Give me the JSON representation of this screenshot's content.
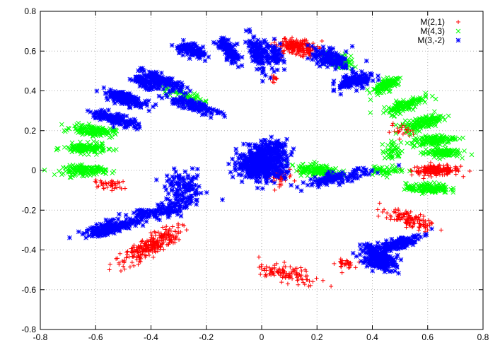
{
  "chart_data": {
    "type": "scatter",
    "title": "",
    "xlabel": "",
    "ylabel": "",
    "xlim": [
      -0.8,
      0.8
    ],
    "ylim": [
      -0.8,
      0.8
    ],
    "xticks": [
      "-0.8",
      "-0.6",
      "-0.4",
      "-0.2",
      "0",
      "0.2",
      "0.4",
      "0.6",
      "0.8"
    ],
    "yticks": [
      "-0.8",
      "-0.6",
      "-0.4",
      "-0.2",
      "0",
      "0.2",
      "0.4",
      "0.6",
      "0.8"
    ],
    "grid": true,
    "grid_style": "dotted",
    "legend_position": "top-right",
    "series": [
      {
        "name": "M(2,1)",
        "marker": "plus",
        "color": "#ff0000",
        "clusters": [
          {
            "cx": 0.13,
            "cy": 0.62,
            "rx": 0.035,
            "ry": 0.07,
            "angle": 75,
            "n": 220
          },
          {
            "cx": 0.63,
            "cy": 0.0,
            "rx": 0.08,
            "ry": 0.022,
            "angle": 0,
            "n": 180
          },
          {
            "cx": 0.54,
            "cy": -0.25,
            "rx": 0.09,
            "ry": 0.03,
            "angle": -30,
            "n": 120
          },
          {
            "cx": 0.3,
            "cy": -0.47,
            "rx": 0.03,
            "ry": 0.02,
            "angle": 0,
            "n": 30
          },
          {
            "cx": 0.09,
            "cy": -0.52,
            "rx": 0.04,
            "ry": 0.11,
            "angle": 70,
            "n": 110
          },
          {
            "cx": -0.4,
            "cy": -0.38,
            "rx": 0.12,
            "ry": 0.04,
            "angle": 40,
            "n": 260
          },
          {
            "cx": -0.55,
            "cy": -0.07,
            "rx": 0.05,
            "ry": 0.02,
            "angle": -10,
            "n": 40
          },
          {
            "cx": 0.06,
            "cy": -0.03,
            "rx": 0.05,
            "ry": 0.04,
            "angle": 0,
            "n": 50
          },
          {
            "cx": 0.51,
            "cy": 0.2,
            "rx": 0.04,
            "ry": 0.03,
            "angle": 0,
            "n": 30
          },
          {
            "cx": 0.05,
            "cy": 0.46,
            "rx": 0.02,
            "ry": 0.02,
            "angle": 0,
            "n": 12
          }
        ]
      },
      {
        "name": "M(4,3)",
        "marker": "x",
        "color": "#00ff00",
        "clusters": [
          {
            "cx": -0.64,
            "cy": 0.0,
            "rx": 0.07,
            "ry": 0.022,
            "angle": 0,
            "n": 150
          },
          {
            "cx": -0.64,
            "cy": 0.11,
            "rx": 0.07,
            "ry": 0.022,
            "angle": 0,
            "n": 150
          },
          {
            "cx": -0.61,
            "cy": 0.2,
            "rx": 0.07,
            "ry": 0.022,
            "angle": -8,
            "n": 150
          },
          {
            "cx": 0.28,
            "cy": 0.55,
            "rx": 0.025,
            "ry": 0.055,
            "angle": 70,
            "n": 120
          },
          {
            "cx": 0.45,
            "cy": 0.43,
            "rx": 0.05,
            "ry": 0.025,
            "angle": 40,
            "n": 120
          },
          {
            "cx": 0.52,
            "cy": 0.33,
            "rx": 0.07,
            "ry": 0.025,
            "angle": 30,
            "n": 140
          },
          {
            "cx": 0.58,
            "cy": 0.24,
            "rx": 0.07,
            "ry": 0.025,
            "angle": 20,
            "n": 140
          },
          {
            "cx": 0.62,
            "cy": 0.15,
            "rx": 0.07,
            "ry": 0.022,
            "angle": 10,
            "n": 140
          },
          {
            "cx": 0.65,
            "cy": 0.09,
            "rx": 0.06,
            "ry": 0.02,
            "angle": 0,
            "n": 120
          },
          {
            "cx": 0.6,
            "cy": -0.09,
            "rx": 0.07,
            "ry": 0.022,
            "angle": 0,
            "n": 140
          },
          {
            "cx": 0.45,
            "cy": 0.0,
            "rx": 0.06,
            "ry": 0.02,
            "angle": 0,
            "n": 50
          },
          {
            "cx": 0.48,
            "cy": 0.1,
            "rx": 0.04,
            "ry": 0.04,
            "angle": 0,
            "n": 40
          },
          {
            "cx": 0.2,
            "cy": 0.0,
            "rx": 0.07,
            "ry": 0.03,
            "angle": -10,
            "n": 150
          },
          {
            "cx": -0.28,
            "cy": 0.38,
            "rx": 0.09,
            "ry": 0.02,
            "angle": -25,
            "n": 50
          }
        ]
      },
      {
        "name": "M(3,-2)",
        "marker": "star",
        "color": "#0000ff",
        "clusters": [
          {
            "cx": -0.25,
            "cy": 0.6,
            "rx": 0.05,
            "ry": 0.025,
            "angle": -30,
            "n": 120
          },
          {
            "cx": -0.12,
            "cy": 0.6,
            "rx": 0.07,
            "ry": 0.025,
            "angle": -60,
            "n": 130
          },
          {
            "cx": -0.01,
            "cy": 0.59,
            "rx": 0.08,
            "ry": 0.025,
            "angle": -75,
            "n": 130
          },
          {
            "cx": 0.05,
            "cy": 0.58,
            "rx": 0.06,
            "ry": 0.025,
            "angle": -80,
            "n": 60
          },
          {
            "cx": 0.25,
            "cy": 0.56,
            "rx": 0.04,
            "ry": 0.07,
            "angle": 60,
            "n": 140
          },
          {
            "cx": 0.34,
            "cy": 0.45,
            "rx": 0.06,
            "ry": 0.03,
            "angle": 20,
            "n": 150
          },
          {
            "cx": -0.36,
            "cy": 0.45,
            "rx": 0.08,
            "ry": 0.025,
            "angle": -30,
            "n": 140
          },
          {
            "cx": -0.42,
            "cy": 0.44,
            "rx": 0.05,
            "ry": 0.02,
            "angle": -30,
            "n": 80
          },
          {
            "cx": -0.49,
            "cy": 0.36,
            "rx": 0.08,
            "ry": 0.025,
            "angle": -25,
            "n": 140
          },
          {
            "cx": -0.53,
            "cy": 0.26,
            "rx": 0.08,
            "ry": 0.025,
            "angle": -20,
            "n": 140
          },
          {
            "cx": -0.25,
            "cy": 0.33,
            "rx": 0.1,
            "ry": 0.025,
            "angle": -25,
            "n": 120
          },
          {
            "cx": 0.0,
            "cy": 0.03,
            "rx": 0.08,
            "ry": 0.065,
            "angle": 0,
            "n": 500
          },
          {
            "cx": 0.04,
            "cy": 0.11,
            "rx": 0.05,
            "ry": 0.04,
            "angle": 0,
            "n": 100
          },
          {
            "cx": 0.27,
            "cy": -0.04,
            "rx": 0.12,
            "ry": 0.025,
            "angle": 15,
            "n": 120
          },
          {
            "cx": -0.37,
            "cy": -0.21,
            "rx": 0.12,
            "ry": 0.03,
            "angle": 15,
            "n": 140
          },
          {
            "cx": -0.55,
            "cy": -0.29,
            "rx": 0.09,
            "ry": 0.025,
            "angle": 20,
            "n": 180
          },
          {
            "cx": -0.28,
            "cy": -0.1,
            "rx": 0.06,
            "ry": 0.08,
            "angle": 0,
            "n": 120
          },
          {
            "cx": 0.43,
            "cy": -0.45,
            "rx": 0.06,
            "ry": 0.04,
            "angle": -30,
            "n": 200
          },
          {
            "cx": 0.49,
            "cy": -0.37,
            "rx": 0.08,
            "ry": 0.025,
            "angle": 25,
            "n": 150
          },
          {
            "cx": 0.41,
            "cy": -0.43,
            "rx": 0.06,
            "ry": 0.025,
            "angle": -60,
            "n": 80
          }
        ]
      }
    ]
  }
}
